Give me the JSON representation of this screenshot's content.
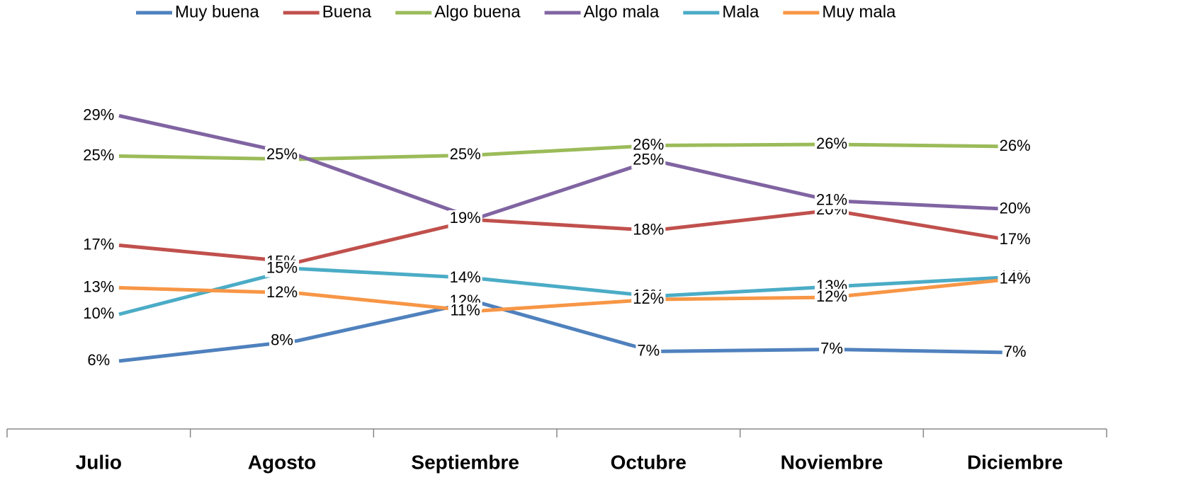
{
  "chart_data": {
    "type": "line",
    "categories": [
      "Julio",
      "Agosto",
      "Septiembre",
      "Octubre",
      "Noviembre",
      "Diciembre"
    ],
    "ylim": [
      0,
      40
    ],
    "legend": "top",
    "series": [
      {
        "name": "Muy buena",
        "color": "#4f81bd",
        "values": [
          6.0,
          7.9,
          11.6,
          6.9,
          7.1,
          6.8
        ],
        "value_labels": [
          "6%",
          "8%",
          "12%",
          "7%",
          "7%",
          "7%"
        ]
      },
      {
        "name": "Buena",
        "color": "#c0504d",
        "values": [
          16.9,
          15.3,
          19.3,
          18.3,
          20.2,
          17.4
        ],
        "value_labels": [
          "17%",
          "15%",
          "19%",
          "18%",
          "20%",
          "17%"
        ]
      },
      {
        "name": "Algo buena",
        "color": "#9bbb59",
        "values": [
          25.3,
          25.0,
          25.4,
          26.3,
          26.4,
          26.2
        ],
        "value_labels": [
          "25%",
          "25%",
          "25%",
          "26%",
          "26%",
          "26%"
        ]
      },
      {
        "name": "Algo mala",
        "color": "#8064a2",
        "values": [
          29.1,
          25.4,
          19.4,
          24.9,
          21.1,
          20.3
        ],
        "value_labels": [
          "29%",
          "25%",
          "19%",
          "25%",
          "21%",
          "20%"
        ]
      },
      {
        "name": "Mala",
        "color": "#4bacc6",
        "values": [
          10.4,
          14.7,
          13.8,
          12.1,
          13.0,
          13.9
        ],
        "value_labels": [
          "10%",
          "15%",
          "14%",
          "12%",
          "13%",
          "14%"
        ]
      },
      {
        "name": "Muy mala",
        "color": "#f79646",
        "values": [
          12.9,
          12.4,
          10.7,
          11.8,
          12.0,
          13.7
        ],
        "value_labels": [
          "13%",
          "12%",
          "11%",
          "12%",
          "12%",
          "14%"
        ]
      }
    ]
  }
}
